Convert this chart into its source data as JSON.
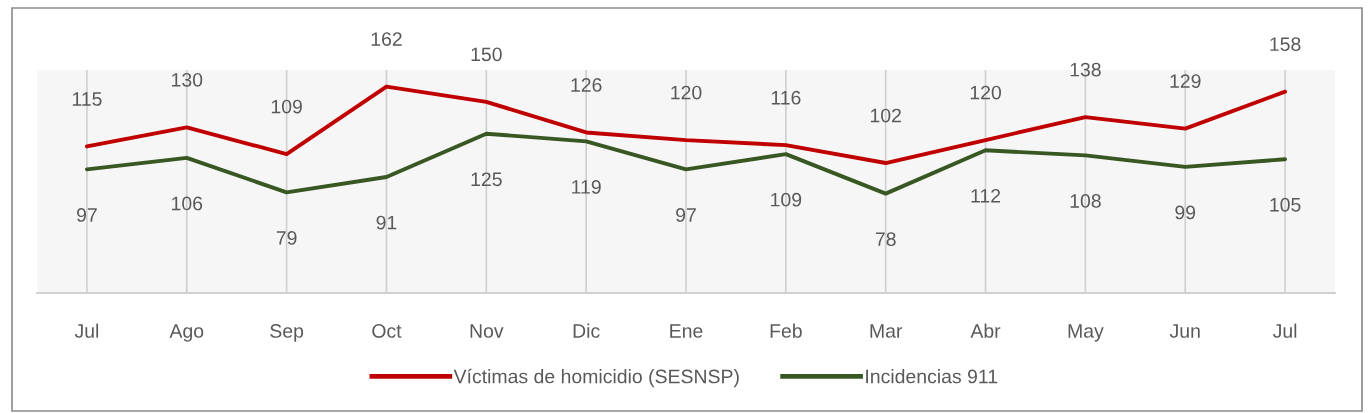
{
  "chart_data": {
    "type": "line",
    "categories": [
      "Jul",
      "Ago",
      "Sep",
      "Oct",
      "Nov",
      "Dic",
      "Ene",
      "Feb",
      "Mar",
      "Abr",
      "May",
      "Jun",
      "Jul"
    ],
    "series": [
      {
        "name": "Víctimas de homicidio (SESNSP)",
        "color": "#c00000",
        "values": [
          115,
          130,
          109,
          162,
          150,
          126,
          120,
          116,
          102,
          120,
          138,
          129,
          158
        ]
      },
      {
        "name": "Incidencias 911",
        "color": "#385723",
        "values": [
          97,
          106,
          79,
          91,
          125,
          119,
          97,
          109,
          78,
          112,
          108,
          99,
          105
        ]
      }
    ],
    "ylim": [
      0,
      175
    ],
    "data_labels": true,
    "grid": "x",
    "legend": "bottom",
    "tick_labels": "x",
    "marker": "none",
    "line_style": "solid"
  }
}
